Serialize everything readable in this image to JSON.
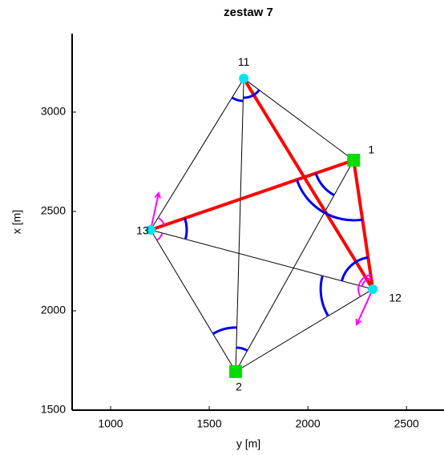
{
  "chart_data": {
    "type": "network",
    "title": "zestaw 7",
    "xlabel": "y [m]",
    "ylabel": "x [m]",
    "xlim": [
      805,
      2690
    ],
    "ylim": [
      1500,
      3395
    ],
    "xticks": [
      1000,
      1500,
      2000,
      2500
    ],
    "yticks": [
      1500,
      2000,
      2500,
      3000
    ],
    "points": [
      {
        "name": "11",
        "x": 1675,
        "y": 3169,
        "color": "#00e5ee",
        "marker": "circle"
      },
      {
        "name": "1",
        "x": 2232,
        "y": 2758,
        "color": "#00dd00",
        "marker": "square"
      },
      {
        "name": "12",
        "x": 2329,
        "y": 2109,
        "color": "#00e5ee",
        "marker": "circle"
      },
      {
        "name": "13",
        "x": 1203,
        "y": 2407,
        "color": "#00e5ee",
        "marker": "circle"
      },
      {
        "name": "2",
        "x": 1634,
        "y": 1694,
        "color": "#00dd00",
        "marker": "square"
      }
    ],
    "lines": [
      {
        "from": "11",
        "to": "1",
        "color": "#000000"
      },
      {
        "from": "11",
        "to": "13",
        "color": "#000000"
      },
      {
        "from": "11",
        "to": "2",
        "color": "#000000"
      },
      {
        "from": "13",
        "to": "2",
        "color": "#000000"
      },
      {
        "from": "13",
        "to": "12",
        "color": "#000000"
      },
      {
        "from": "2",
        "to": "1",
        "color": "#000000"
      },
      {
        "from": "2",
        "to": "12",
        "color": "#000000"
      },
      {
        "from": "11",
        "to": "12",
        "color": "#ff0000"
      },
      {
        "from": "13",
        "to": "1",
        "color": "#ff0000"
      },
      {
        "from": "1",
        "to": "12",
        "color": "#ff0000"
      }
    ]
  }
}
